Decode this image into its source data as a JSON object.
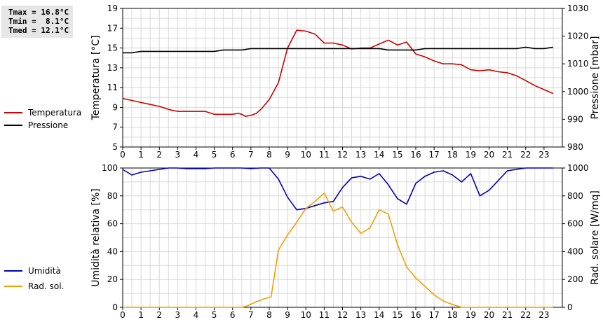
{
  "stats": {
    "tmax": "Tmax = 16.8°C",
    "tmin": "Tmin =  8.1°C",
    "tmed": "Tmed = 12.1°C"
  },
  "legend": {
    "temperatura": "Temperatura",
    "pressione": "Pressione",
    "umidita": "Umidità",
    "rad_sol": "Rad. sol."
  },
  "colors": {
    "temperatura": "#cc0000",
    "pressione": "#000000",
    "umidita": "#0000bb",
    "rad_sol": "#f0a000",
    "grid": "#d8d8d8"
  },
  "chart_data": [
    {
      "type": "line",
      "x_ticks": [
        "0",
        "1",
        "2",
        "3",
        "4",
        "5",
        "6",
        "7",
        "8",
        "9",
        "10",
        "11",
        "12",
        "13",
        "14",
        "15",
        "16",
        "17",
        "18",
        "19",
        "20",
        "21",
        "22",
        "23"
      ],
      "xlim": [
        0,
        24
      ],
      "ylabel_left": "Temperatura [°C]",
      "ylabel_right": "Pressione [mbar]",
      "ylim_left": [
        5,
        19
      ],
      "ylim_right": [
        980,
        1030
      ],
      "yticks_left": [
        "5",
        "7",
        "9",
        "11",
        "13",
        "15",
        "17",
        "19"
      ],
      "yticks_right": [
        "980",
        "990",
        "1000",
        "1010",
        "1020",
        "1030"
      ],
      "grid": true,
      "series": [
        {
          "name": "Temperatura",
          "axis": "left",
          "color": "#cc0000",
          "x": [
            0,
            0.5,
            1,
            1.5,
            2,
            2.5,
            3,
            3.5,
            4,
            4.5,
            5,
            5.5,
            5.8,
            6,
            6.3,
            6.5,
            6.7,
            7,
            7.3,
            7.6,
            8,
            8.5,
            9,
            9.5,
            10,
            10.5,
            11,
            11.5,
            12,
            12.5,
            13,
            13.5,
            14,
            14.5,
            15,
            15.5,
            16,
            16.5,
            17,
            17.5,
            18,
            18.5,
            19,
            19.5,
            20,
            20.5,
            21,
            21.5,
            22,
            22.5,
            23,
            23.5
          ],
          "values": [
            9.9,
            9.7,
            9.5,
            9.3,
            9.1,
            8.8,
            8.6,
            8.6,
            8.6,
            8.6,
            8.3,
            8.3,
            8.3,
            8.3,
            8.4,
            8.3,
            8.1,
            8.2,
            8.4,
            8.9,
            9.8,
            11.5,
            15.0,
            16.8,
            16.7,
            16.4,
            15.5,
            15.5,
            15.3,
            14.9,
            15.0,
            15.0,
            15.4,
            15.8,
            15.3,
            15.6,
            14.4,
            14.1,
            13.7,
            13.4,
            13.4,
            13.3,
            12.8,
            12.7,
            12.8,
            12.6,
            12.5,
            12.2,
            11.7,
            11.2,
            10.8,
            10.4
          ]
        },
        {
          "name": "Pressione",
          "axis": "right",
          "color": "#000000",
          "x": [
            0,
            0.5,
            1,
            1.5,
            2,
            2.5,
            3,
            3.5,
            4,
            4.5,
            5,
            5.5,
            6,
            6.5,
            7,
            7.5,
            8,
            8.5,
            9,
            9.5,
            10,
            10.5,
            11,
            11.5,
            12,
            12.5,
            13,
            13.5,
            14,
            14.5,
            15,
            15.5,
            16,
            16.5,
            17,
            17.5,
            18,
            18.5,
            19,
            19.5,
            20,
            20.5,
            21,
            21.5,
            22,
            22.5,
            23,
            23.5
          ],
          "values": [
            1014,
            1014,
            1014.5,
            1014.5,
            1014.5,
            1014.5,
            1014.5,
            1014.5,
            1014.5,
            1014.5,
            1014.5,
            1015,
            1015,
            1015,
            1015.5,
            1015.5,
            1015.5,
            1015.5,
            1015.5,
            1015.5,
            1015.5,
            1015.5,
            1015.5,
            1015.5,
            1015.5,
            1015.5,
            1015.5,
            1015.5,
            1015.5,
            1015,
            1015,
            1015,
            1015,
            1015.5,
            1015.5,
            1015.5,
            1015.5,
            1015.5,
            1015.5,
            1015.5,
            1015.5,
            1015.5,
            1015.5,
            1015.5,
            1016,
            1015.5,
            1015.5,
            1016
          ]
        }
      ]
    },
    {
      "type": "line",
      "x_ticks": [
        "0",
        "1",
        "2",
        "3",
        "4",
        "5",
        "6",
        "7",
        "8",
        "9",
        "10",
        "11",
        "12",
        "13",
        "14",
        "15",
        "16",
        "17",
        "18",
        "19",
        "20",
        "21",
        "22",
        "23"
      ],
      "xlim": [
        0,
        24
      ],
      "ylabel_left": "Umidità relativa [%]",
      "ylabel_right": "Rad. solare [W/mq]",
      "ylim_left": [
        0,
        100
      ],
      "ylim_right": [
        0,
        1000
      ],
      "yticks_left": [
        "0",
        "20",
        "40",
        "60",
        "80",
        "100"
      ],
      "yticks_right": [
        "0",
        "200",
        "400",
        "600",
        "800",
        "1000"
      ],
      "grid": true,
      "series": [
        {
          "name": "Umidità",
          "axis": "left",
          "color": "#0000bb",
          "x": [
            0,
            0.5,
            1,
            1.5,
            2,
            2.5,
            3,
            3.5,
            4,
            4.5,
            5,
            5.5,
            6,
            6.5,
            7,
            7.5,
            8,
            8.5,
            9,
            9.5,
            10,
            10.5,
            11,
            11.5,
            12,
            12.5,
            13,
            13.5,
            14,
            14.5,
            15,
            15.5,
            16,
            16.5,
            17,
            17.5,
            18,
            18.5,
            19,
            19.5,
            20,
            20.5,
            21,
            21.5,
            22,
            22.5,
            23,
            23.5
          ],
          "values": [
            99,
            95,
            97,
            98,
            99,
            100,
            100,
            99.5,
            99.5,
            99.5,
            100,
            100,
            100,
            100,
            99.5,
            100,
            100,
            92,
            79,
            70,
            71,
            73,
            75,
            76,
            86,
            93,
            94,
            92,
            96,
            88,
            78,
            74,
            89,
            94,
            97,
            98,
            95,
            90,
            96,
            80,
            84,
            91,
            98,
            99,
            100,
            100,
            100,
            100
          ]
        },
        {
          "name": "Rad. sol.",
          "axis": "right",
          "color": "#f0a000",
          "x": [
            0,
            0.5,
            1,
            1.5,
            2,
            2.5,
            3,
            3.5,
            4,
            4.5,
            5,
            5.5,
            6,
            6.5,
            6.8,
            7.3,
            7.7,
            8.1,
            8.5,
            9,
            9.5,
            10,
            10.5,
            11,
            11.5,
            12,
            12.5,
            13,
            13.5,
            14,
            14.5,
            15,
            15.5,
            16,
            16.5,
            17,
            17.5,
            18,
            18.5,
            19,
            19.5,
            20,
            20.5,
            21,
            21.5,
            22,
            22.5,
            23,
            23.5
          ],
          "values": [
            0,
            0,
            0,
            0,
            0,
            0,
            0,
            0,
            0,
            0,
            0,
            0,
            0,
            0,
            10,
            40,
            60,
            75,
            410,
            520,
            610,
            710,
            760,
            820,
            690,
            720,
            610,
            530,
            570,
            700,
            670,
            450,
            290,
            210,
            150,
            90,
            45,
            20,
            0,
            0,
            0,
            0,
            0,
            0,
            0,
            0,
            0,
            0,
            0
          ]
        }
      ]
    }
  ]
}
